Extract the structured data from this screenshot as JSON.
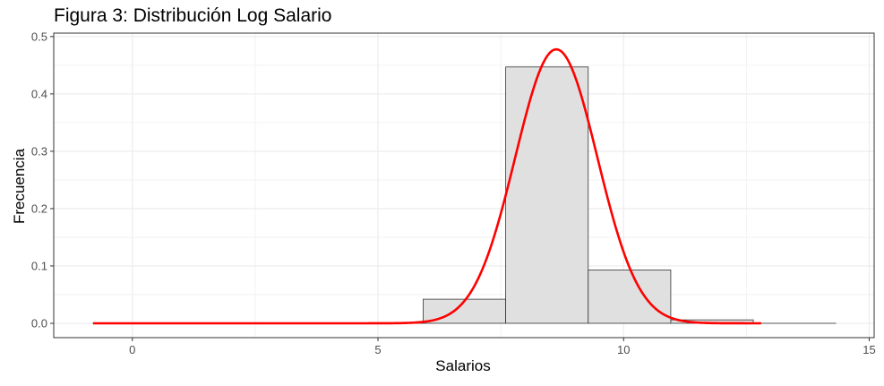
{
  "chart_data": {
    "type": "bar",
    "title": "Figura 3: Distribución Log Salario",
    "xlabel": "Salarios",
    "ylabel": "Frecuencia",
    "xlim": [
      -1.6,
      15.1
    ],
    "ylim": [
      -0.025,
      0.506
    ],
    "x_ticks": [
      0,
      5,
      10,
      15
    ],
    "x_tick_labels": [
      "0",
      "5",
      "10",
      "15"
    ],
    "y_ticks": [
      0,
      0.1,
      0.2,
      0.3,
      0.4,
      0.5
    ],
    "y_tick_labels": [
      "0.0",
      "0.1",
      "0.2",
      "0.3",
      "0.4",
      "0.5"
    ],
    "grid": true,
    "histogram": {
      "bin_edges": [
        -0.8,
        0.88,
        2.56,
        4.24,
        5.92,
        7.6,
        9.28,
        10.96,
        12.64,
        14.32
      ],
      "values": [
        0,
        0,
        0,
        0,
        0.042,
        0.447,
        0.093,
        0.006,
        0
      ],
      "fill": "#e0e0e0",
      "edge": "#333333"
    },
    "density_curve": {
      "color": "#ff0000",
      "mean": 8.63,
      "sd": 0.835,
      "x_range": [
        -0.8,
        12.8
      ]
    }
  }
}
